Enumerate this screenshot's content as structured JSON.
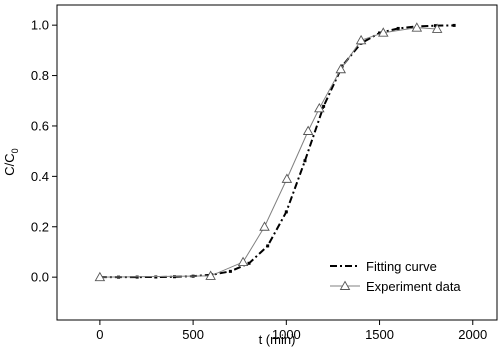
{
  "chart_data": {
    "type": "line",
    "xlabel": "t (min)",
    "ylabel": {
      "text": "C/C",
      "subscript": "0"
    },
    "xlim": [
      -230,
      2130
    ],
    "ylim": [
      -0.17,
      1.08
    ],
    "xticks": [
      0,
      500,
      1000,
      1500,
      2000
    ],
    "yticks": [
      {
        "value": 0,
        "label": "0.0"
      },
      {
        "value": 0.2,
        "label": "0.2"
      },
      {
        "value": 0.4,
        "label": "0.4"
      },
      {
        "value": 0.6,
        "label": "0.6"
      },
      {
        "value": 0.8,
        "label": "0.8"
      },
      {
        "value": 1,
        "label": "1.0"
      }
    ],
    "legend": "lower right",
    "series": [
      {
        "name": "Fitting curve",
        "color": "#000000",
        "style": "dash-dot",
        "x": [
          0,
          100,
          200,
          300,
          400,
          500,
          600,
          700,
          800,
          900,
          1000,
          1100,
          1200,
          1300,
          1400,
          1500,
          1600,
          1700,
          1800,
          1900
        ],
        "values": [
          0,
          0.0001,
          0.0003,
          0.0006,
          0.0016,
          0.0039,
          0.0095,
          0.023,
          0.055,
          0.124,
          0.259,
          0.462,
          0.678,
          0.838,
          0.928,
          0.969,
          0.987,
          0.995,
          0.998,
          0.999
        ]
      },
      {
        "name": "Experiment data",
        "color": "#808080",
        "style": "triangle",
        "x": [
          0,
          594,
          768,
          883,
          1003,
          1117,
          1177,
          1292,
          1401,
          1520,
          1700,
          1809
        ],
        "values": [
          0,
          0.005,
          0.06,
          0.2,
          0.39,
          0.58,
          0.67,
          0.825,
          0.94,
          0.97,
          0.99,
          0.985
        ]
      }
    ]
  }
}
